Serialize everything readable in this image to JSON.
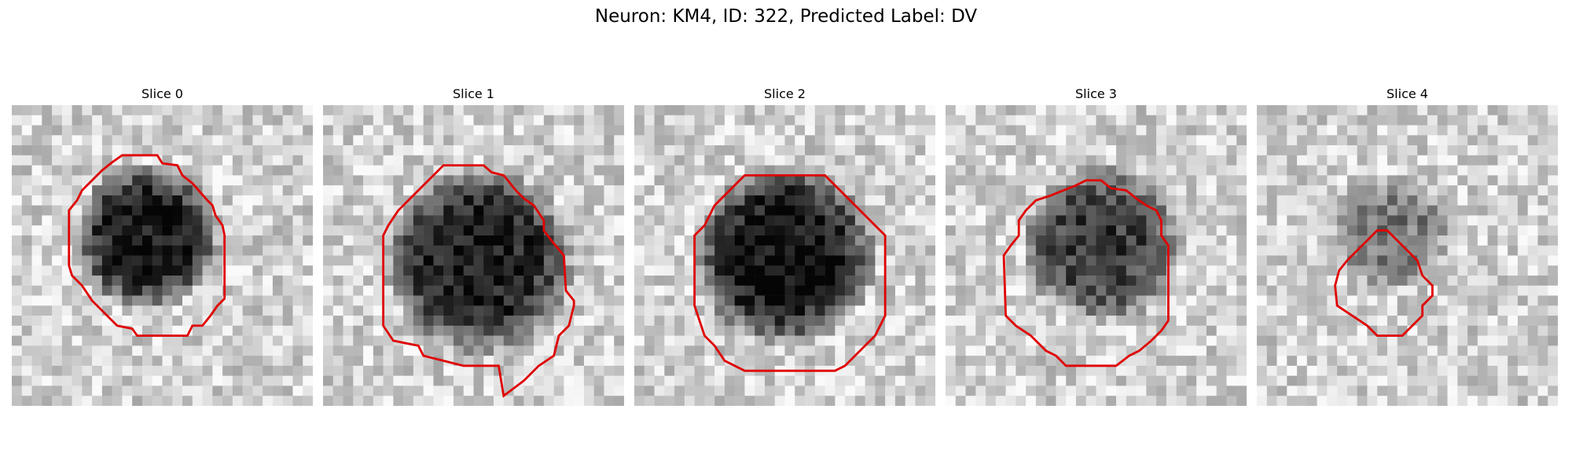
{
  "figure": {
    "title": "Neuron: KM4, ID: 322, Predicted Label: DV",
    "contour_color": "#e00000"
  },
  "panels": [
    {
      "title": "Slice 0",
      "seed": 11,
      "blob_cx": 0.45,
      "blob_cy": 0.44,
      "blob_r": 0.25,
      "dark": 0.75
    },
    {
      "title": "Slice 1",
      "seed": 23,
      "blob_cx": 0.52,
      "blob_cy": 0.52,
      "blob_r": 0.32,
      "dark": 0.72
    },
    {
      "title": "Slice 2",
      "seed": 37,
      "blob_cx": 0.5,
      "blob_cy": 0.5,
      "blob_r": 0.31,
      "dark": 0.78
    },
    {
      "title": "Slice 3",
      "seed": 41,
      "blob_cx": 0.52,
      "blob_cy": 0.46,
      "blob_r": 0.27,
      "dark": 0.6
    },
    {
      "title": "Slice 4",
      "seed": 53,
      "blob_cx": 0.45,
      "blob_cy": 0.42,
      "blob_r": 0.2,
      "dark": 0.35
    }
  ]
}
